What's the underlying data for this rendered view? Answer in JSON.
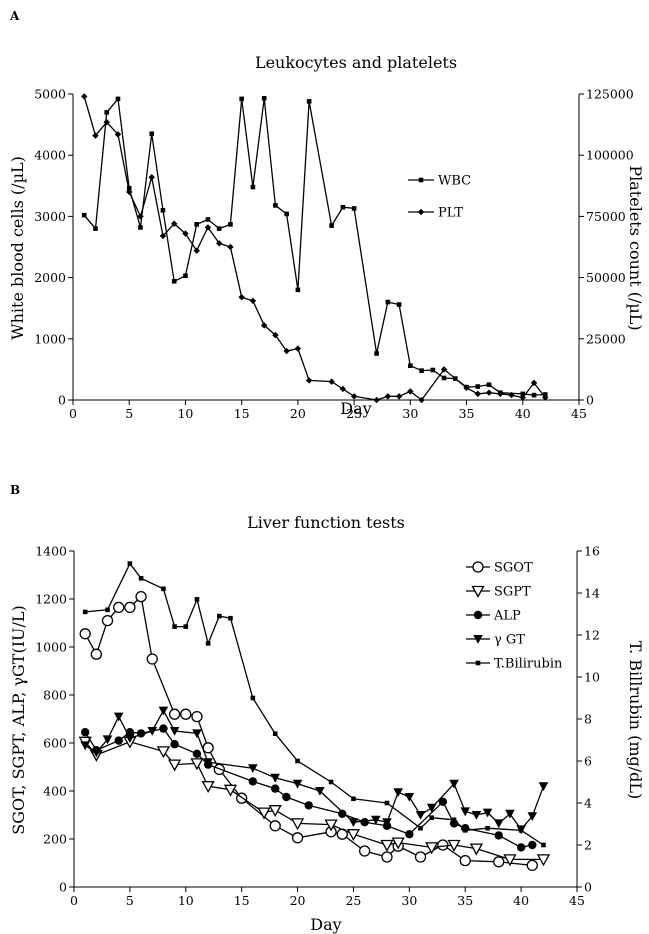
{
  "chart_data": [
    {
      "panel": "A",
      "type": "line",
      "title": "Leukocytes and platelets",
      "xlabel": "Day",
      "ylabel": "White blood cells (/µL)",
      "y2label": "Platelets count (/µL)",
      "xlim": [
        0,
        45
      ],
      "ylim": [
        0,
        5000
      ],
      "y2lim": [
        0,
        125000
      ],
      "xticks": [
        "0",
        "5",
        "10",
        "15",
        "20",
        "25",
        "30",
        "35",
        "40",
        "45"
      ],
      "yticks": [
        "0",
        "1000",
        "2000",
        "3000",
        "4000",
        "5000"
      ],
      "y2ticks": [
        "0",
        "25000",
        "50000",
        "75000",
        "100000",
        "125000"
      ],
      "legend_position": "right",
      "series": [
        {
          "name": "WBC",
          "axis": "left",
          "marker": "square",
          "points": [
            [
              1,
              3020
            ],
            [
              2,
              2800
            ],
            [
              3,
              4700
            ],
            [
              4,
              4920
            ],
            [
              5,
              3460
            ],
            [
              6,
              2820
            ],
            [
              7,
              4350
            ],
            [
              8,
              3100
            ],
            [
              9,
              1940
            ],
            [
              10,
              2030
            ],
            [
              11,
              2870
            ],
            [
              12,
              2950
            ],
            [
              13,
              2800
            ],
            [
              14,
              2870
            ],
            [
              15,
              4920
            ],
            [
              16,
              3480
            ],
            [
              17,
              4930
            ],
            [
              18,
              3180
            ],
            [
              19,
              3040
            ],
            [
              20,
              1800
            ],
            [
              21,
              4880
            ],
            [
              23,
              2850
            ],
            [
              24,
              3150
            ],
            [
              25,
              3130
            ],
            [
              27,
              760
            ],
            [
              28,
              1600
            ],
            [
              29,
              1560
            ],
            [
              30,
              560
            ],
            [
              31,
              480
            ],
            [
              32,
              490
            ],
            [
              33,
              360
            ],
            [
              34,
              350
            ],
            [
              35,
              210
            ],
            [
              36,
              220
            ],
            [
              37,
              250
            ],
            [
              38,
              120
            ],
            [
              40,
              100
            ],
            [
              41,
              80
            ],
            [
              42,
              90
            ]
          ]
        },
        {
          "name": "PLT",
          "axis": "right",
          "marker": "diamond",
          "points": [
            [
              1,
              124000
            ],
            [
              2,
              108000
            ],
            [
              3,
              113500
            ],
            [
              4,
              108500
            ],
            [
              5,
              85000
            ],
            [
              6,
              75000
            ],
            [
              7,
              91000
            ],
            [
              8,
              67000
            ],
            [
              9,
              72000
            ],
            [
              10,
              68000
            ],
            [
              11,
              61000
            ],
            [
              12,
              70500
            ],
            [
              13,
              64000
            ],
            [
              14,
              62500
            ],
            [
              15,
              42000
            ],
            [
              16,
              40500
            ],
            [
              17,
              30500
            ],
            [
              18,
              26500
            ],
            [
              19,
              20000
            ],
            [
              20,
              21000
            ],
            [
              21,
              8000
            ],
            [
              23,
              7500
            ],
            [
              24,
              4500
            ],
            [
              25,
              1500
            ],
            [
              27,
              0
            ],
            [
              28,
              1500
            ],
            [
              29,
              1500
            ],
            [
              30,
              3500
            ],
            [
              31,
              0
            ],
            [
              33,
              12500
            ],
            [
              35,
              5000
            ],
            [
              36,
              2500
            ],
            [
              37,
              3000
            ],
            [
              38,
              2500
            ],
            [
              39,
              2000
            ],
            [
              40,
              1000
            ],
            [
              41,
              7000
            ],
            [
              42,
              1000
            ]
          ]
        }
      ]
    },
    {
      "panel": "B",
      "type": "line",
      "title": "Liver function tests",
      "xlabel": "Day",
      "ylabel": "SGOT, SGPT, ALP, γGT(IU/L)",
      "y2label": "T. Billrubin (mg/dL)",
      "xlim": [
        0,
        45
      ],
      "ylim": [
        0,
        1400
      ],
      "y2lim": [
        0,
        16
      ],
      "xticks": [
        "0",
        "5",
        "10",
        "15",
        "20",
        "25",
        "30",
        "35",
        "40",
        "45"
      ],
      "yticks": [
        "0",
        "200",
        "400",
        "600",
        "800",
        "1000",
        "1200",
        "1400"
      ],
      "y2ticks": [
        "0",
        "2",
        "4",
        "6",
        "8",
        "10",
        "12",
        "14",
        "16"
      ],
      "legend_position": "top-right",
      "series": [
        {
          "name": "SGOT",
          "axis": "left",
          "marker": "open-circle",
          "points": [
            [
              1,
              1055
            ],
            [
              2,
              970
            ],
            [
              3,
              1110
            ],
            [
              4,
              1165
            ],
            [
              5,
              1165
            ],
            [
              6,
              1210
            ],
            [
              7,
              950
            ],
            [
              9,
              720
            ],
            [
              10,
              720
            ],
            [
              11,
              710
            ],
            [
              12,
              580
            ],
            [
              13,
              490
            ],
            [
              15,
              370
            ],
            [
              18,
              255
            ],
            [
              20,
              205
            ],
            [
              23,
              230
            ],
            [
              24,
              220
            ],
            [
              26,
              150
            ],
            [
              28,
              125
            ],
            [
              29,
              170
            ],
            [
              31,
              125
            ],
            [
              33,
              175
            ],
            [
              35,
              110
            ],
            [
              38,
              105
            ],
            [
              41,
              90
            ]
          ]
        },
        {
          "name": "SGPT",
          "axis": "left",
          "marker": "open-triangle-down",
          "points": [
            [
              1,
              605
            ],
            [
              2,
              550
            ],
            [
              5,
              605
            ],
            [
              8,
              565
            ],
            [
              9,
              510
            ],
            [
              11,
              515
            ],
            [
              12,
              420
            ],
            [
              14,
              405
            ],
            [
              17,
              310
            ],
            [
              18,
              320
            ],
            [
              20,
              265
            ],
            [
              23,
              260
            ],
            [
              25,
              220
            ],
            [
              28,
              175
            ],
            [
              29,
              185
            ],
            [
              32,
              165
            ],
            [
              34,
              175
            ],
            [
              36,
              160
            ],
            [
              39,
              115
            ],
            [
              42,
              115
            ]
          ]
        },
        {
          "name": "ALP",
          "axis": "left",
          "marker": "filled-circle",
          "points": [
            [
              1,
              645
            ],
            [
              2,
              570
            ],
            [
              4,
              610
            ],
            [
              5,
              645
            ],
            [
              6,
              640
            ],
            [
              8,
              660
            ],
            [
              9,
              595
            ],
            [
              11,
              555
            ],
            [
              12,
              510
            ],
            [
              16,
              440
            ],
            [
              18,
              410
            ],
            [
              19,
              375
            ],
            [
              21,
              340
            ],
            [
              24,
              305
            ],
            [
              26,
              270
            ],
            [
              28,
              255
            ],
            [
              30,
              220
            ],
            [
              33,
              355
            ],
            [
              34,
              265
            ],
            [
              35,
              245
            ],
            [
              38,
              215
            ],
            [
              40,
              165
            ],
            [
              41,
              175
            ]
          ]
        },
        {
          "name": "γ GT",
          "axis": "left",
          "marker": "filled-triangle-down",
          "points": [
            [
              1,
              590
            ],
            [
              2,
              560
            ],
            [
              3,
              615
            ],
            [
              4,
              710
            ],
            [
              5,
              620
            ],
            [
              7,
              650
            ],
            [
              8,
              735
            ],
            [
              9,
              650
            ],
            [
              11,
              640
            ],
            [
              12,
              520
            ],
            [
              16,
              495
            ],
            [
              18,
              455
            ],
            [
              20,
              430
            ],
            [
              22,
              400
            ],
            [
              25,
              270
            ],
            [
              27,
              280
            ],
            [
              28,
              270
            ],
            [
              29,
              395
            ],
            [
              30,
              375
            ],
            [
              31,
              300
            ],
            [
              32,
              330
            ],
            [
              34,
              430
            ],
            [
              35,
              315
            ],
            [
              36,
              300
            ],
            [
              37,
              310
            ],
            [
              38,
              265
            ],
            [
              39,
              305
            ],
            [
              40,
              240
            ],
            [
              41,
              295
            ],
            [
              42,
              420
            ]
          ]
        },
        {
          "name": "T.Bilirubin",
          "axis": "right",
          "marker": "square",
          "points": [
            [
              1,
              13.1
            ],
            [
              3,
              13.2
            ],
            [
              5,
              15.4
            ],
            [
              6,
              14.7
            ],
            [
              8,
              14.2
            ],
            [
              9,
              12.4
            ],
            [
              10,
              12.4
            ],
            [
              11,
              13.7
            ],
            [
              12,
              11.6
            ],
            [
              13,
              12.9
            ],
            [
              14,
              12.8
            ],
            [
              16,
              9.0
            ],
            [
              18,
              7.3
            ],
            [
              20,
              6.0
            ],
            [
              23,
              5.0
            ],
            [
              25,
              4.2
            ],
            [
              28,
              4.0
            ],
            [
              31,
              2.8
            ],
            [
              32,
              3.3
            ],
            [
              34,
              3.2
            ],
            [
              35,
              2.7
            ],
            [
              37,
              2.8
            ],
            [
              40,
              2.7
            ],
            [
              42,
              2.0
            ]
          ]
        }
      ]
    }
  ]
}
